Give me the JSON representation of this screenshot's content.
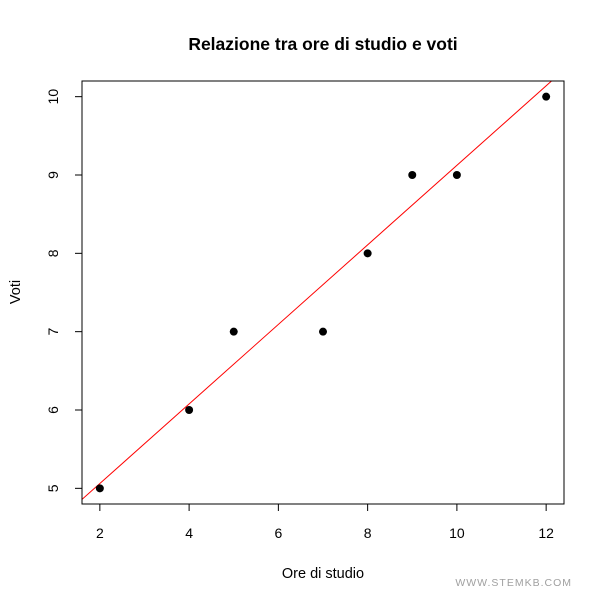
{
  "chart_data": {
    "type": "scatter",
    "title": "Relazione tra ore di studio e voti",
    "xlabel": "Ore di studio",
    "ylabel": "Voti",
    "xlim": [
      1.6,
      12.4
    ],
    "ylim": [
      4.8,
      10.2
    ],
    "xticks": [
      2,
      4,
      6,
      8,
      10,
      12
    ],
    "yticks": [
      5,
      6,
      7,
      8,
      9,
      10
    ],
    "x": [
      2,
      4,
      5,
      7,
      8,
      9,
      10,
      12
    ],
    "y": [
      5,
      6,
      7,
      7,
      8,
      9,
      9,
      10
    ],
    "point_color": "#000000",
    "regression_line": {
      "intercept": 4.0464,
      "slope": 0.5077,
      "color": "#ff0000"
    },
    "grid": false,
    "legend": "none"
  },
  "watermark": "WWW.STEMKB.COM"
}
